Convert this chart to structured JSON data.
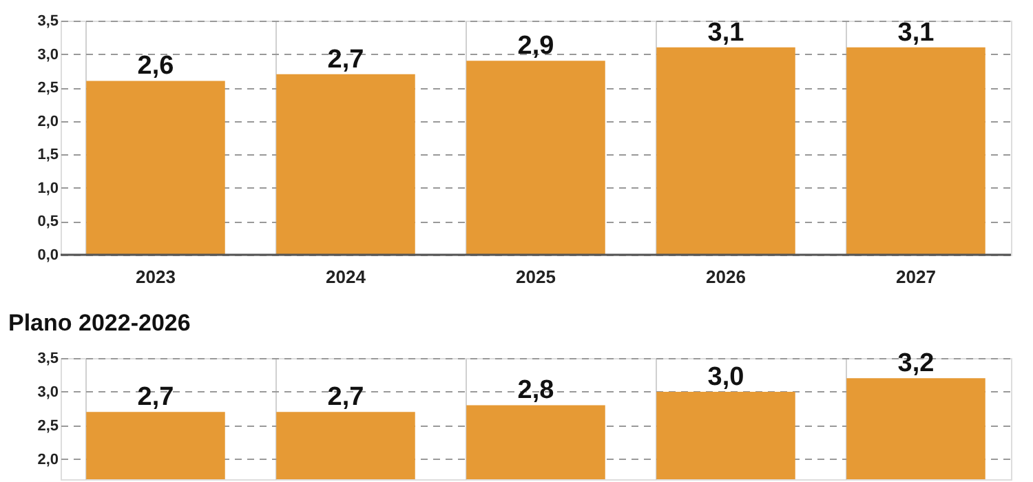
{
  "chart_data": [
    {
      "type": "bar",
      "categories": [
        "2023",
        "2024",
        "2025",
        "2026",
        "2027"
      ],
      "series": [
        {
          "color": "#e69a35",
          "values": [
            2.6,
            2.7,
            2.9,
            3.1,
            3.1
          ],
          "value_labels": [
            "2,6",
            "2,7",
            "2,9",
            "3,1",
            "3,1"
          ]
        }
      ],
      "ylim": [
        0,
        3.5
      ],
      "yticks": [
        {
          "value": 0,
          "label": "0,0"
        },
        {
          "value": 0.5,
          "label": "0,5"
        },
        {
          "value": 1,
          "label": "1,0"
        },
        {
          "value": 1.5,
          "label": "1,5"
        },
        {
          "value": 2,
          "label": "2,0"
        },
        {
          "value": 2.5,
          "label": "2,5"
        },
        {
          "value": 3,
          "label": "3,0"
        },
        {
          "value": 3.5,
          "label": "3,5"
        }
      ],
      "grid": true
    },
    {
      "type": "bar",
      "title": "Plano 2022-2026",
      "categories": [
        null,
        null,
        null,
        null,
        null
      ],
      "series": [
        {
          "color": "#e69a35",
          "values": [
            2.7,
            2.7,
            2.8,
            3.0,
            3.2
          ],
          "value_labels": [
            "2,7",
            "2,7",
            "2,8",
            "3,0",
            "3,2"
          ]
        }
      ],
      "ylim": [
        1.7,
        3.5
      ],
      "yticks": [
        {
          "value": 2,
          "label": "2,0"
        },
        {
          "value": 2.5,
          "label": "2,5"
        },
        {
          "value": 3,
          "label": "3,0"
        },
        {
          "value": 3.5,
          "label": "3,5"
        }
      ],
      "grid": true,
      "tick_labels": "y"
    }
  ]
}
